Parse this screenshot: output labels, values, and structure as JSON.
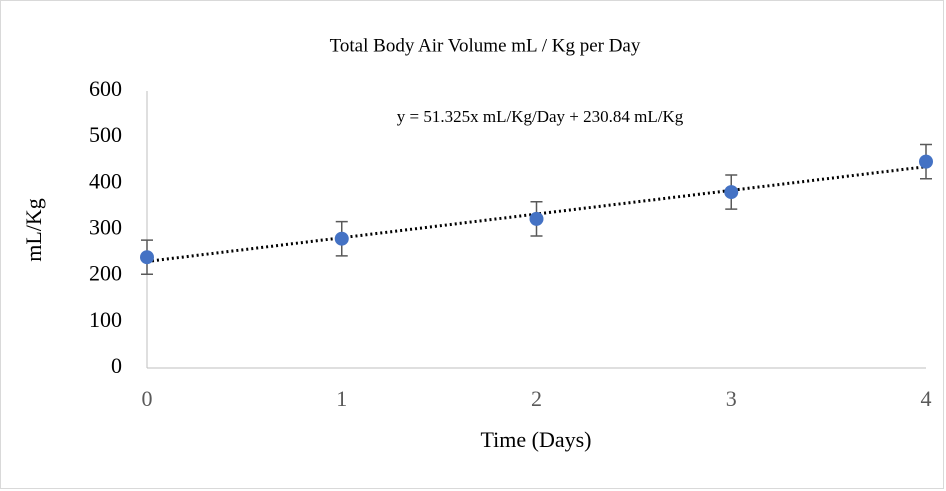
{
  "chart_data": {
    "type": "scatter",
    "title": "Total Body Air Volume mL / Kg per Day",
    "annotation": "y = 51.325x mL/Kg/Day + 230.84 mL/Kg",
    "x_label": "Time (Days)",
    "y_label": "mL/Kg",
    "x": [
      0,
      1,
      2,
      3,
      4
    ],
    "values": [
      240,
      280,
      323,
      381,
      447
    ],
    "errors": [
      37,
      37,
      37,
      37,
      37
    ],
    "color": "#4472c4",
    "trendline": {
      "slope": 51.325,
      "intercept": 230.84,
      "color": "#000000"
    },
    "xlim": [
      0,
      4
    ],
    "xticks": [
      0,
      1,
      2,
      3,
      4
    ],
    "ylim": [
      0,
      600
    ],
    "yticks": [
      0,
      100,
      200,
      300,
      400,
      500,
      600
    ]
  }
}
